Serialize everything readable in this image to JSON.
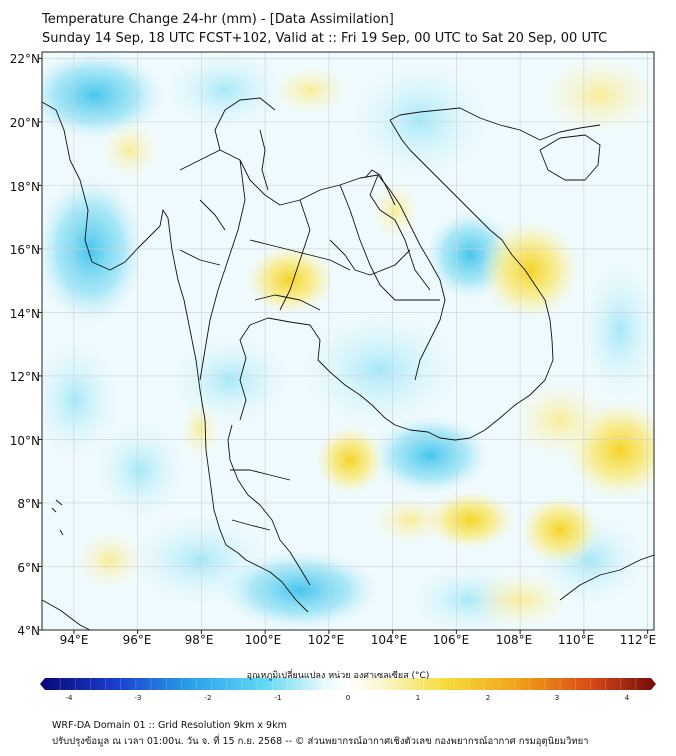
{
  "header": {
    "title": "Temperature Change 24-hr (mm) - [Data Assimilation]",
    "subtitle": "Sunday 14 Sep, 18 UTC FCST+102, Valid at :: Fri 19 Sep, 00 UTC to Sat 20 Sep, 00 UTC"
  },
  "map": {
    "region": "Thailand and Mainland Southeast Asia",
    "lat_labels": [
      "22°N",
      "20°N",
      "18°N",
      "16°N",
      "14°N",
      "12°N",
      "10°N",
      "8°N",
      "6°N",
      "4°N"
    ],
    "lon_labels": [
      "94°E",
      "96°E",
      "98°E",
      "100°E",
      "102°E",
      "104°E",
      "106°E",
      "108°E",
      "110°E",
      "112°E"
    ],
    "extent": {
      "lon": [
        93,
        112.2
      ],
      "lat": [
        4,
        22.2
      ]
    },
    "colors": {
      "land_line": "#111111",
      "grid": "#d8d8d8",
      "neutral": "#ffffff"
    }
  },
  "colorbar": {
    "label": "อุณหภูมิเปลี่ยนแปลง หน่วย องศาเซลเซียส (°C)",
    "ticks": [
      "-4",
      "-3",
      "-2",
      "-1",
      "0",
      "1",
      "2",
      "3",
      "4"
    ],
    "range": [
      -4,
      4
    ],
    "colors": [
      "#0a0a7a",
      "#1a3fd0",
      "#2aa0e8",
      "#5fd8f2",
      "#e8f8fb",
      "#ffffff",
      "#fbf6c8",
      "#f5dd3a",
      "#f0a21a",
      "#d94a14",
      "#7a0f0f"
    ]
  },
  "footer": {
    "line1": "WRF-DA Domain 01 :: Grid Resolution 9km x 9km",
    "line2": "ปรับปรุงข้อมูล ณ เวลา 01:00น. วัน จ. ที่ 15 ก.ย. 2568 -- © ส่วนพยากรณ์อากาศเชิงตัวเลข กองพยากรณ์อากาศ กรมอุตุนิยมวิทยา"
  }
}
